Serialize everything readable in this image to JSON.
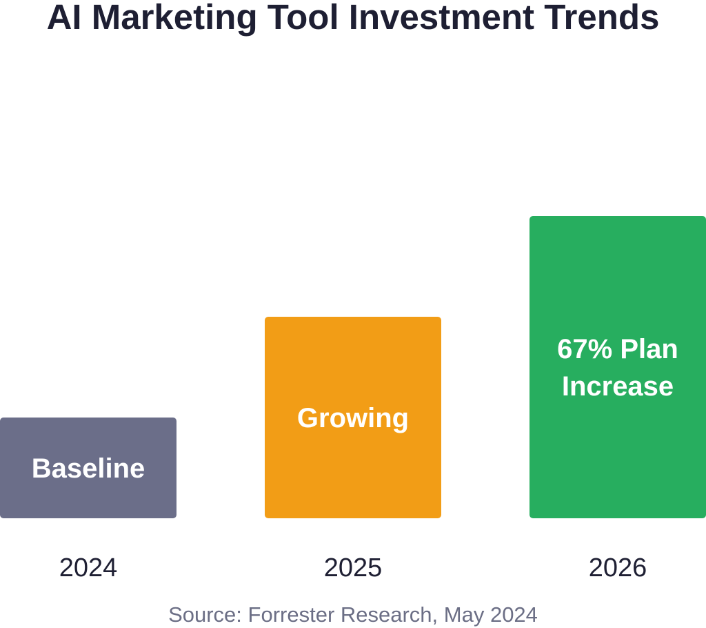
{
  "chart_data": {
    "type": "bar",
    "title": "AI Marketing Tool Investment Trends",
    "categories": [
      "2024",
      "2025",
      "2026"
    ],
    "values": [
      1,
      2,
      3
    ],
    "bar_labels": [
      [
        "Baseline"
      ],
      [
        "Growing"
      ],
      [
        "67% Plan",
        "Increase"
      ]
    ],
    "colors": [
      "#6b6e89",
      "#f29d16",
      "#27ae5f"
    ],
    "xlabel": "",
    "ylabel": "",
    "grid": false,
    "legend": "none"
  },
  "source_note": "Source: Forrester Research, May 2024"
}
